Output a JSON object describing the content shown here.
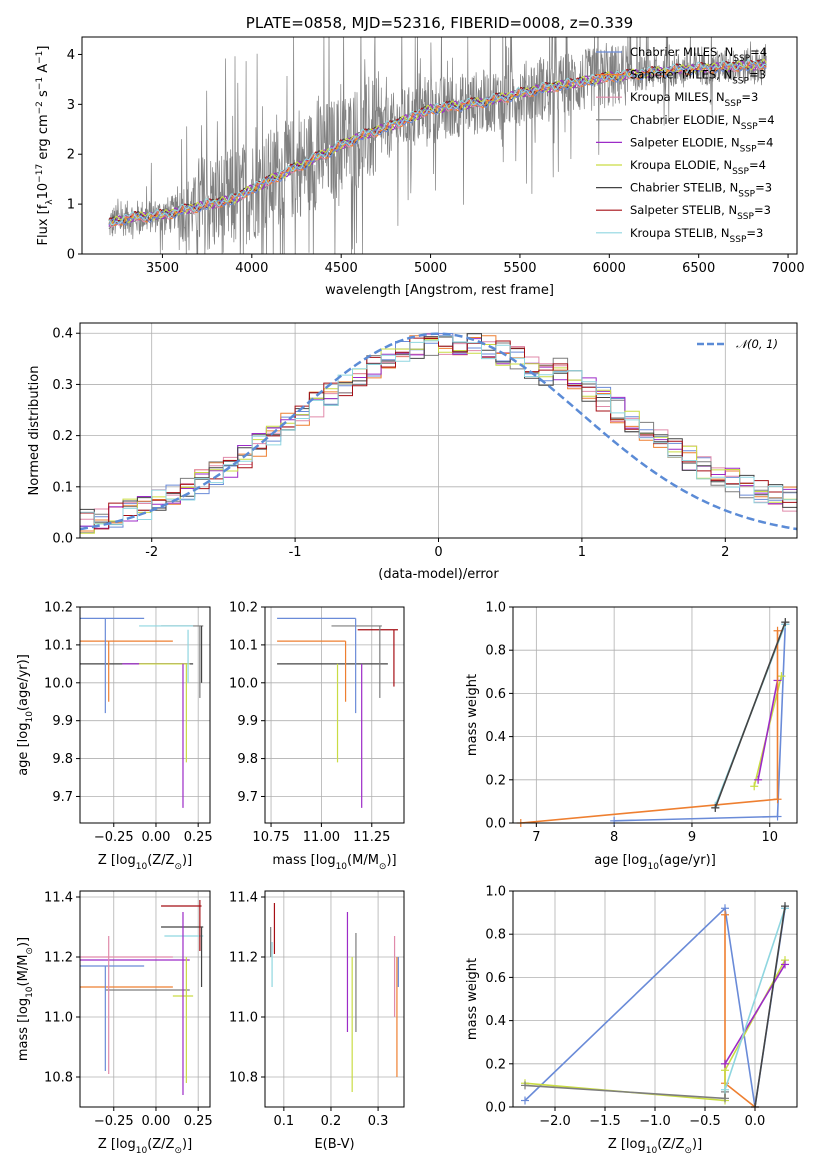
{
  "palette": [
    "#6a8bd8",
    "#ee7f30",
    "#e08aaa",
    "#7d7d7d",
    "#9c2bc7",
    "#c9dc44",
    "#444444",
    "#a50f15",
    "#8fd6e0"
  ],
  "chart_data": [
    {
      "id": "spectrum",
      "type": "line",
      "title": "PLATE=0858, MJD=52316, FIBERID=0008, z=0.339",
      "xlabel": "wavelength [Angstrom, rest frame]",
      "ylabel": "Flux [f",
      "ylabel_sub": "λ",
      "ylabel_mid": "10",
      "ylabel_sup": "−17",
      "ylabel_tail": " erg cm",
      "ylabel_sup2": "−2",
      "ylabel_tail2": " s",
      "ylabel_sup3": "−1",
      "ylabel_tail3": " A",
      "ylabel_sup4": "−1",
      "ylabel_end": "]",
      "xlim": [
        3050,
        7050
      ],
      "ylim": [
        0,
        4.35
      ],
      "xticks": [
        3500,
        4000,
        4500,
        5000,
        5500,
        6000,
        6500,
        7000
      ],
      "yticks": [
        0,
        1,
        2,
        3,
        4
      ],
      "data_x_range": [
        3200,
        6880
      ],
      "model_anchors": [
        [
          3200,
          0.6
        ],
        [
          3300,
          0.72
        ],
        [
          3500,
          0.78
        ],
        [
          3700,
          0.95
        ],
        [
          3900,
          1.1
        ],
        [
          4000,
          1.3
        ],
        [
          4200,
          1.65
        ],
        [
          4400,
          2.0
        ],
        [
          4600,
          2.35
        ],
        [
          4800,
          2.6
        ],
        [
          5000,
          2.9
        ],
        [
          5300,
          3.05
        ],
        [
          5600,
          3.3
        ],
        [
          6000,
          3.55
        ],
        [
          6400,
          3.7
        ],
        [
          6880,
          3.8
        ]
      ],
      "legend": [
        {
          "label": "Chabrier MILES, N",
          "sub": "SSP",
          "tail": "=4"
        },
        {
          "label": "Salpeter MILES, N",
          "sub": "SSP",
          "tail": "=3"
        },
        {
          "label": "Kroupa MILES, N",
          "sub": "SSP",
          "tail": "=3"
        },
        {
          "label": "Chabrier ELODIE, N",
          "sub": "SSP",
          "tail": "=4"
        },
        {
          "label": "Salpeter ELODIE, N",
          "sub": "SSP",
          "tail": "=4"
        },
        {
          "label": "Kroupa ELODIE, N",
          "sub": "SSP",
          "tail": "=4"
        },
        {
          "label": "Chabrier STELIB, N",
          "sub": "SSP",
          "tail": "=3"
        },
        {
          "label": "Salpeter STELIB, N",
          "sub": "SSP",
          "tail": "=3"
        },
        {
          "label": "Kroupa STELIB, N",
          "sub": "SSP",
          "tail": "=3"
        }
      ],
      "legend_placement": "top-right"
    },
    {
      "id": "residuals",
      "type": "area",
      "xlabel": "(data-model)/error",
      "ylabel": "Normed distribution",
      "xlim": [
        -2.5,
        2.5
      ],
      "ylim": [
        0,
        0.42
      ],
      "xticks": [
        -2,
        -1,
        0,
        1,
        2
      ],
      "yticks": [
        0.0,
        0.1,
        0.2,
        0.3,
        0.4
      ],
      "ytick_labels": [
        "0.0",
        "0.1",
        "0.2",
        "0.3",
        "0.4"
      ],
      "bin_width": 0.1,
      "legend": [
        {
          "label": "𝒩(0, 1)",
          "color": "#5b8bd6",
          "dash": true
        }
      ],
      "legend_placement": "top-right"
    },
    {
      "id": "age-vs-Z",
      "type": "scatter",
      "xlabel": "Z [log",
      "xlabel_sub": "10",
      "xlabel_tail": "(Z/Z",
      "xlabel_sub2": "⊙",
      "xlabel_end": ")]",
      "ylabel": "age  [log",
      "ylabel_sub": "10",
      "ylabel_tail": "(age/yr)]",
      "xlim": [
        -0.45,
        0.32
      ],
      "ylim": [
        9.63,
        10.2
      ],
      "xticks": [
        -0.25,
        0.0,
        0.25
      ],
      "xtick_labels": [
        "−0.25",
        "0.00",
        "0.25"
      ],
      "yticks": [
        9.7,
        9.8,
        9.9,
        10.0,
        10.1,
        10.2
      ],
      "ytick_labels": [
        "9.7",
        "9.8",
        "9.9",
        "10.0",
        "10.1",
        "10.2"
      ],
      "hbars": [
        {
          "c": 0,
          "y": 10.17,
          "x0": -0.45,
          "x1": -0.07
        },
        {
          "c": 3,
          "y": 10.15,
          "x0": 0.03,
          "x1": 0.28
        },
        {
          "c": 1,
          "y": 10.11,
          "x0": -0.45,
          "x1": 0.1
        },
        {
          "c": 6,
          "y": 10.05,
          "x0": -0.45,
          "x1": 0.22
        },
        {
          "c": 4,
          "y": 10.05,
          "x0": -0.2,
          "x1": 0.2
        },
        {
          "c": 5,
          "y": 10.05,
          "x0": -0.1,
          "x1": 0.2
        },
        {
          "c": 8,
          "y": 10.15,
          "x0": -0.1,
          "x1": 0.22
        }
      ],
      "vbars": [
        {
          "c": 0,
          "x": -0.3,
          "y0": 9.92,
          "y1": 10.17
        },
        {
          "c": 1,
          "x": -0.28,
          "y0": 9.95,
          "y1": 10.11
        },
        {
          "c": 4,
          "x": 0.16,
          "y0": 9.67,
          "y1": 10.05
        },
        {
          "c": 5,
          "x": 0.18,
          "y0": 9.79,
          "y1": 10.05
        },
        {
          "c": 8,
          "x": 0.19,
          "y0": 10.0,
          "y1": 10.14
        },
        {
          "c": 3,
          "x": 0.26,
          "y0": 9.96,
          "y1": 10.15
        },
        {
          "c": 6,
          "x": 0.27,
          "y0": 10.0,
          "y1": 10.15
        }
      ]
    },
    {
      "id": "age-vs-mass",
      "type": "scatter",
      "xlabel": "mass [log",
      "xlabel_sub": "10",
      "xlabel_tail": "(M/M",
      "xlabel_sub2": "⊙",
      "xlabel_end": ")]",
      "xlim": [
        10.72,
        11.41
      ],
      "ylim": [
        9.63,
        10.2
      ],
      "xticks": [
        10.75,
        11.0,
        11.25
      ],
      "xtick_labels": [
        "10.75",
        "11.00",
        "11.25"
      ],
      "yticks": [
        9.7,
        9.8,
        9.9,
        10.0,
        10.1,
        10.2
      ],
      "ytick_labels": [
        "9.7",
        "9.8",
        "9.9",
        "10.0",
        "10.1",
        "10.2"
      ],
      "hbars": [
        {
          "c": 0,
          "y": 10.17,
          "x0": 10.78,
          "x1": 11.17
        },
        {
          "c": 1,
          "y": 10.11,
          "x0": 10.78,
          "x1": 11.12
        },
        {
          "c": 6,
          "y": 10.05,
          "x0": 10.78,
          "x1": 11.33
        },
        {
          "c": 3,
          "y": 10.15,
          "x0": 11.05,
          "x1": 11.3
        },
        {
          "c": 7,
          "y": 10.14,
          "x0": 11.18,
          "x1": 11.38
        }
      ],
      "vbars": [
        {
          "c": 5,
          "x": 11.08,
          "y0": 9.79,
          "y1": 10.05
        },
        {
          "c": 4,
          "x": 11.2,
          "y0": 9.67,
          "y1": 10.05
        },
        {
          "c": 0,
          "x": 11.17,
          "y0": 9.92,
          "y1": 10.17
        },
        {
          "c": 1,
          "x": 11.12,
          "y0": 9.95,
          "y1": 10.11
        },
        {
          "c": 3,
          "x": 11.29,
          "y0": 9.96,
          "y1": 10.15
        },
        {
          "c": 7,
          "x": 11.36,
          "y0": 9.99,
          "y1": 10.14
        }
      ]
    },
    {
      "id": "massweight-vs-age",
      "type": "line",
      "xlabel": "age  [log",
      "xlabel_sub": "10",
      "xlabel_tail": "(age/yr)]",
      "ylabel": "mass weight",
      "xlim": [
        6.7,
        10.35
      ],
      "ylim": [
        0,
        1
      ],
      "xticks": [
        7,
        8,
        9,
        10
      ],
      "xtick_labels": [
        "7",
        "8",
        "9",
        "10"
      ],
      "yticks": [
        0.0,
        0.2,
        0.4,
        0.6,
        0.8,
        1.0
      ],
      "ytick_labels": [
        "0.0",
        "0.2",
        "0.4",
        "0.6",
        "0.8",
        "1.0"
      ],
      "series": [
        {
          "c": 0,
          "x": [
            8.0,
            10.1,
            10.2
          ],
          "y": [
            0.01,
            0.03,
            0.92
          ]
        },
        {
          "c": 3,
          "x": [
            9.3,
            10.2
          ],
          "y": [
            0.07,
            0.93
          ]
        },
        {
          "c": 8,
          "x": [
            9.3,
            10.2
          ],
          "y": [
            0.08,
            0.92
          ]
        },
        {
          "c": 5,
          "x": [
            9.8,
            10.15
          ],
          "y": [
            0.17,
            0.68
          ]
        },
        {
          "c": 4,
          "x": [
            9.85,
            10.1
          ],
          "y": [
            0.2,
            0.66
          ]
        },
        {
          "c": 1,
          "x": [
            6.8,
            10.1,
            10.1
          ],
          "y": [
            0.0,
            0.11,
            0.89
          ]
        },
        {
          "c": 6,
          "x": [
            9.3,
            10.2
          ],
          "y": [
            0.07,
            0.93
          ]
        }
      ]
    },
    {
      "id": "mass-vs-Z",
      "type": "scatter",
      "xlabel": "Z [log",
      "xlabel_sub": "10",
      "xlabel_tail": "(Z/Z",
      "xlabel_sub2": "⊙",
      "xlabel_end": ")]",
      "ylabel": "mass [log",
      "ylabel_sub": "10",
      "ylabel_tail": "(M/M",
      "ylabel_sub2": "⊙",
      "ylabel_end": ")]",
      "xlim": [
        -0.45,
        0.32
      ],
      "ylim": [
        10.7,
        11.42
      ],
      "xticks": [
        -0.25,
        0.0,
        0.25
      ],
      "xtick_labels": [
        "−0.25",
        "0.00",
        "0.25"
      ],
      "yticks": [
        10.8,
        11.0,
        11.2,
        11.4
      ],
      "ytick_labels": [
        "10.8",
        "11.0",
        "11.2",
        "11.4"
      ],
      "hbars": [
        {
          "c": 7,
          "y": 11.37,
          "x0": 0.03,
          "x1": 0.27
        },
        {
          "c": 6,
          "y": 11.3,
          "x0": 0.03,
          "x1": 0.28
        },
        {
          "c": 8,
          "y": 11.27,
          "x0": 0.05,
          "x1": 0.28
        },
        {
          "c": 2,
          "y": 11.2,
          "x0": -0.45,
          "x1": 0.1
        },
        {
          "c": 4,
          "y": 11.19,
          "x0": -0.45,
          "x1": 0.2
        },
        {
          "c": 0,
          "y": 11.17,
          "x0": -0.45,
          "x1": -0.07
        },
        {
          "c": 1,
          "y": 11.1,
          "x0": -0.45,
          "x1": 0.1
        },
        {
          "c": 3,
          "y": 11.09,
          "x0": -0.3,
          "x1": 0.2
        },
        {
          "c": 5,
          "y": 11.07,
          "x0": 0.1,
          "x1": 0.22
        }
      ],
      "vbars": [
        {
          "c": 2,
          "x": -0.28,
          "y0": 10.81,
          "y1": 11.27
        },
        {
          "c": 0,
          "x": -0.3,
          "y0": 10.82,
          "y1": 11.17
        },
        {
          "c": 4,
          "x": 0.16,
          "y0": 10.74,
          "y1": 11.35
        },
        {
          "c": 5,
          "x": 0.18,
          "y0": 10.78,
          "y1": 11.2
        },
        {
          "c": 7,
          "x": 0.26,
          "y0": 11.22,
          "y1": 11.39
        },
        {
          "c": 6,
          "x": 0.27,
          "y0": 11.1,
          "y1": 11.3
        }
      ]
    },
    {
      "id": "mass-vs-ebv",
      "type": "scatter",
      "xlabel": "E(B-V)",
      "xlim": [
        0.06,
        0.355
      ],
      "ylim": [
        10.7,
        11.42
      ],
      "xticks": [
        0.1,
        0.2,
        0.3
      ],
      "xtick_labels": [
        "0.1",
        "0.2",
        "0.3"
      ],
      "yticks": [
        10.8,
        11.0,
        11.2,
        11.4
      ],
      "ytick_labels": [
        "10.8",
        "11.0",
        "11.2",
        "11.4"
      ],
      "vbars": [
        {
          "c": 3,
          "x": 0.072,
          "y0": 11.2,
          "y1": 11.3
        },
        {
          "c": 8,
          "x": 0.075,
          "y0": 11.1,
          "y1": 11.25
        },
        {
          "c": 7,
          "x": 0.08,
          "y0": 11.21,
          "y1": 11.38
        },
        {
          "c": 4,
          "x": 0.235,
          "y0": 10.95,
          "y1": 11.35
        },
        {
          "c": 5,
          "x": 0.245,
          "y0": 10.75,
          "y1": 11.2
        },
        {
          "c": 3,
          "x": 0.253,
          "y0": 10.95,
          "y1": 11.28
        },
        {
          "c": 2,
          "x": 0.335,
          "y0": 11.0,
          "y1": 11.27
        },
        {
          "c": 1,
          "x": 0.34,
          "y0": 10.8,
          "y1": 11.2
        },
        {
          "c": 0,
          "x": 0.343,
          "y0": 11.1,
          "y1": 11.2
        }
      ]
    },
    {
      "id": "massweight-vs-Z",
      "type": "line",
      "xlabel": "Z [log",
      "xlabel_sub": "10",
      "xlabel_tail": "(Z/Z",
      "xlabel_sub2": "⊙",
      "xlabel_end": ")]",
      "ylabel": "mass weight",
      "xlim": [
        -2.42,
        0.42
      ],
      "ylim": [
        0,
        1
      ],
      "xticks": [
        -2.0,
        -1.5,
        -1.0,
        -0.5,
        0.0
      ],
      "xtick_labels": [
        "−2.0",
        "−1.5",
        "−1.0",
        "−0.5",
        "0.0"
      ],
      "yticks": [
        0.0,
        0.2,
        0.4,
        0.6,
        0.8,
        1.0
      ],
      "ytick_labels": [
        "0.0",
        "0.2",
        "0.4",
        "0.6",
        "0.8",
        "1.0"
      ],
      "series": [
        {
          "c": 0,
          "x": [
            -2.3,
            -0.3,
            0.0,
            0.3
          ],
          "y": [
            0.03,
            0.92,
            0.0,
            0.92
          ]
        },
        {
          "c": 1,
          "x": [
            -0.3,
            -0.3,
            0.0
          ],
          "y": [
            0.89,
            0.11,
            0.0
          ]
        },
        {
          "c": 5,
          "x": [
            -2.3,
            -0.3,
            -0.3,
            0.3
          ],
          "y": [
            0.11,
            0.03,
            0.17,
            0.68
          ]
        },
        {
          "c": 4,
          "x": [
            -0.3,
            0.3
          ],
          "y": [
            0.2,
            0.66
          ]
        },
        {
          "c": 3,
          "x": [
            -2.3,
            -0.3,
            -0.3
          ],
          "y": [
            0.1,
            0.04,
            0.07
          ]
        },
        {
          "c": 8,
          "x": [
            -0.3,
            0.3
          ],
          "y": [
            0.08,
            0.92
          ]
        },
        {
          "c": 6,
          "x": [
            0.0,
            0.3
          ],
          "y": [
            0.0,
            0.93
          ]
        }
      ]
    }
  ]
}
